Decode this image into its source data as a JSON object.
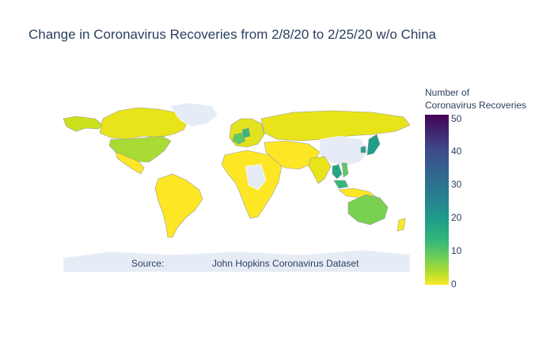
{
  "title": "Change in Coronavirus Recoveries from 2/8/20 to 2/25/20 w/o China",
  "annotation": {
    "label": "Source:",
    "text": "John Hopkins Coronavirus Dataset"
  },
  "colorbar": {
    "title_line1": "Number of",
    "title_line2": "Coronavirus Recoveries",
    "ticks": [
      "50",
      "40",
      "30",
      "20",
      "10",
      "0"
    ],
    "min": 0,
    "max": 52,
    "colorscale": "Viridis (reversed)"
  },
  "colors": {
    "land_no_data": "#e5ecf6",
    "border": "#ffffff",
    "low": "#fde725",
    "mid": "#35b779",
    "high": "#440154"
  },
  "map_regions": [
    {
      "name": "Canada",
      "value": 3
    },
    {
      "name": "United States",
      "value": 7
    },
    {
      "name": "Mexico",
      "value": 0
    },
    {
      "name": "South America",
      "value": 0
    },
    {
      "name": "Western Europe",
      "value": 1
    },
    {
      "name": "Germany",
      "value": 14
    },
    {
      "name": "France",
      "value": 12
    },
    {
      "name": "Russia",
      "value": 2
    },
    {
      "name": "Middle East",
      "value": 0
    },
    {
      "name": "India",
      "value": 3
    },
    {
      "name": "Africa",
      "value": 0
    },
    {
      "name": "Thailand",
      "value": 20
    },
    {
      "name": "Vietnam",
      "value": 16
    },
    {
      "name": "Malaysia",
      "value": 18
    },
    {
      "name": "Japan",
      "value": 22
    },
    {
      "name": "South Korea",
      "value": 20
    },
    {
      "name": "Australia",
      "value": 10
    },
    {
      "name": "New Zealand",
      "value": 0
    }
  ]
}
